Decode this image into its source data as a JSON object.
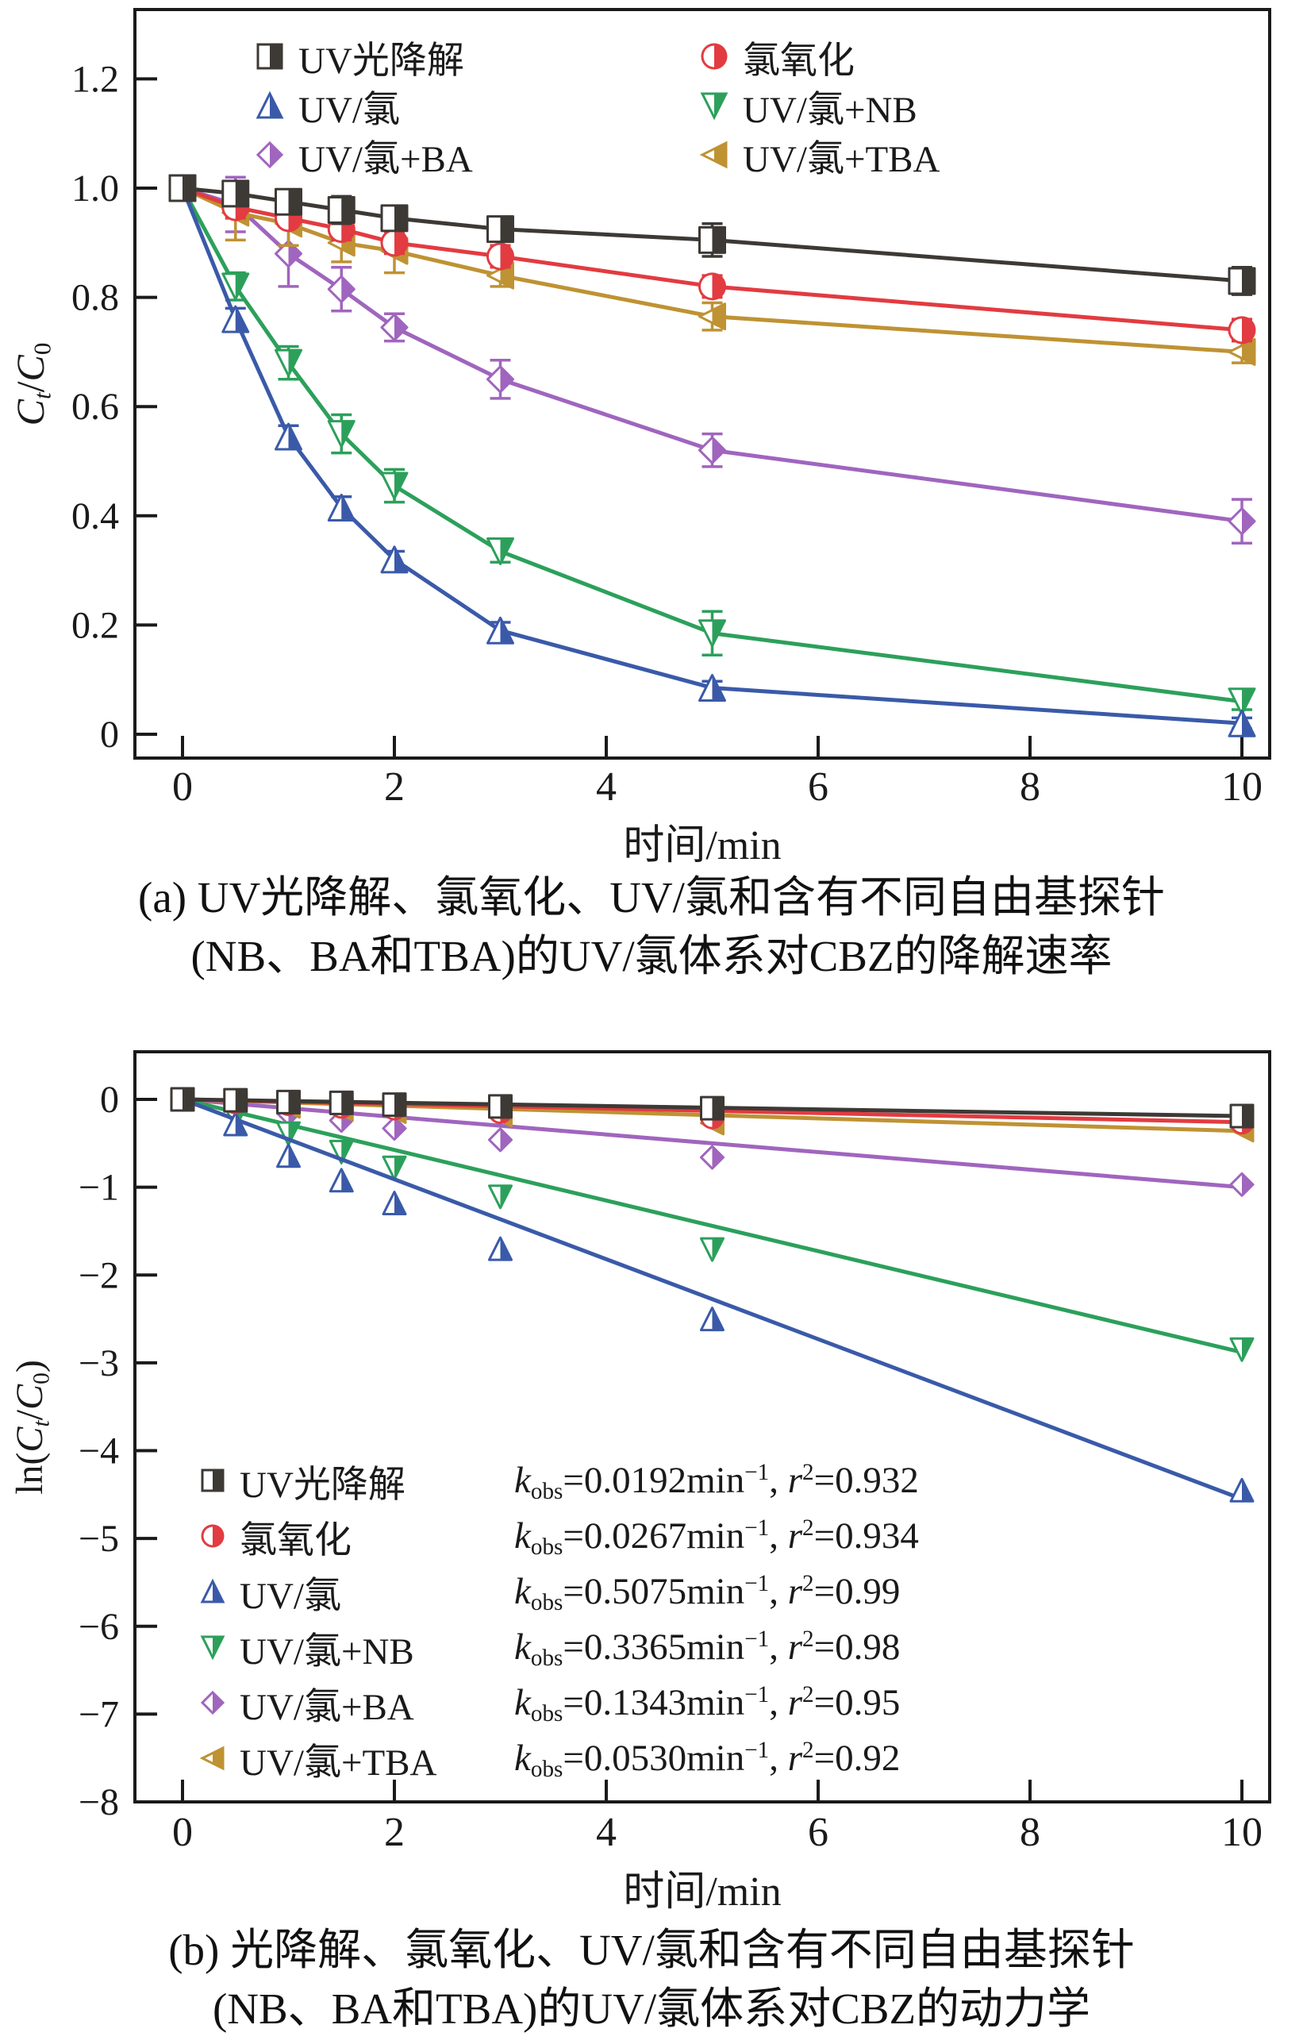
{
  "colors": {
    "axis": "#1a1a1a",
    "background": "#ffffff"
  },
  "chart_data": [
    {
      "panel": "a",
      "type": "line",
      "xlabel": "时间/min",
      "ylabel_parts": [
        [
          "i",
          "C"
        ],
        [
          "subi",
          "t"
        ],
        [
          "t",
          "/"
        ],
        [
          "i",
          "C"
        ],
        [
          "sub",
          "0"
        ]
      ],
      "xlim": [
        -0.45,
        10.26
      ],
      "ylim": [
        -0.044,
        1.33
      ],
      "xticks": {
        "values": [
          0,
          2,
          4,
          6,
          8,
          10
        ],
        "labels": [
          "0",
          "2",
          "4",
          "6",
          "8",
          "10"
        ]
      },
      "yticks": {
        "values": [
          0,
          0.2,
          0.4,
          0.6,
          0.8,
          1.0,
          1.2
        ],
        "labels": [
          "0",
          "0.2",
          "0.4",
          "0.6",
          "0.8",
          "1.0",
          "1.2"
        ]
      },
      "x": [
        0,
        0.5,
        1,
        1.5,
        2,
        3,
        5,
        10
      ],
      "series": [
        {
          "key": "uv_photolysis",
          "name": "UV光降解",
          "color": "#3d3935",
          "marker": "square",
          "values": [
            1.0,
            0.99,
            0.975,
            0.96,
            0.945,
            0.925,
            0.905,
            0.83
          ],
          "errors": [
            0,
            0.02,
            0.02,
            0.025,
            0.02,
            0.02,
            0.03,
            0.025
          ]
        },
        {
          "key": "chlorination",
          "name": "氯氧化",
          "color": "#e23b41",
          "marker": "circle",
          "values": [
            1.0,
            0.965,
            0.945,
            0.925,
            0.9,
            0.875,
            0.82,
            0.74
          ],
          "errors": [
            0,
            0.02,
            0.015,
            0.02,
            0.02,
            0.02,
            0.02,
            0.02
          ]
        },
        {
          "key": "uv_chlorine",
          "name": "UV/氯",
          "color": "#3a5aa9",
          "marker": "triangle-up",
          "values": [
            1.0,
            0.76,
            0.545,
            0.415,
            0.32,
            0.19,
            0.085,
            0.02
          ],
          "errors": [
            0,
            0.02,
            0.02,
            0.02,
            0.015,
            0.015,
            0.012,
            0.01
          ]
        },
        {
          "key": "uv_chlorine_nb",
          "name": "UV/氯+NB",
          "color": "#2ca05b",
          "marker": "triangle-down",
          "values": [
            1.0,
            0.82,
            0.68,
            0.55,
            0.455,
            0.335,
            0.185,
            0.06
          ],
          "errors": [
            0,
            0.025,
            0.03,
            0.035,
            0.03,
            0.02,
            0.04,
            0.015
          ]
        },
        {
          "key": "uv_chlorine_ba",
          "name": "UV/氯+BA",
          "color": "#a065be",
          "marker": "diamond",
          "values": [
            1.0,
            0.97,
            0.88,
            0.815,
            0.745,
            0.65,
            0.52,
            0.39
          ],
          "errors": [
            0,
            0.05,
            0.06,
            0.04,
            0.025,
            0.035,
            0.03,
            0.04
          ]
        },
        {
          "key": "uv_chlorine_tba",
          "name": "UV/氯+TBA",
          "color": "#bf9233",
          "marker": "triangle-left",
          "values": [
            1.0,
            0.955,
            0.935,
            0.9,
            0.885,
            0.84,
            0.765,
            0.7
          ],
          "errors": [
            0,
            0.05,
            0.04,
            0.035,
            0.04,
            0.02,
            0.025,
            0.02
          ]
        }
      ],
      "legend_columns": [
        [
          "uv_photolysis",
          "uv_chlorine",
          "uv_chlorine_ba"
        ],
        [
          "chlorination",
          "uv_chlorine_nb",
          "uv_chlorine_tba"
        ]
      ],
      "caption": {
        "line1": "(a) UV光降解、氯氧化、UV/氯和含有不同自由基探针",
        "line2": "(NB、BA和TBA)的UV/氯体系对CBZ的降解速率"
      }
    },
    {
      "panel": "b",
      "type": "scatter",
      "xlabel": "时间/min",
      "ylabel_parts": [
        [
          "t",
          "ln("
        ],
        [
          "i",
          "C"
        ],
        [
          "subi",
          "t"
        ],
        [
          "t",
          "/"
        ],
        [
          "i",
          "C"
        ],
        [
          "sub",
          "0"
        ],
        [
          "t",
          ")"
        ]
      ],
      "xlim": [
        -0.45,
        10.26
      ],
      "ylim": [
        -8,
        0.55
      ],
      "xticks": {
        "values": [
          0,
          2,
          4,
          6,
          8,
          10
        ],
        "labels": [
          "0",
          "2",
          "4",
          "6",
          "8",
          "10"
        ]
      },
      "yticks": {
        "values": [
          0,
          -1,
          -2,
          -3,
          -4,
          -5,
          -6,
          -7,
          -8
        ],
        "labels": [
          "0",
          "−1",
          "−2",
          "−3",
          "−4",
          "−5",
          "−6",
          "−7",
          "−8"
        ]
      },
      "x": [
        0,
        0.5,
        1,
        1.5,
        2,
        3,
        5,
        10
      ],
      "series": [
        {
          "key": "uv_photolysis",
          "name": "UV光降解",
          "color": "#3d3935",
          "marker": "square",
          "scatter": [
            0,
            -0.01,
            -0.03,
            -0.04,
            -0.06,
            -0.08,
            -0.1,
            -0.19
          ],
          "fit_end": -0.19,
          "kobs": "0.0192",
          "r2": "0.932"
        },
        {
          "key": "chlorination",
          "name": "氯氧化",
          "color": "#e23b41",
          "marker": "circle",
          "scatter": [
            0,
            -0.03,
            -0.05,
            -0.08,
            -0.1,
            -0.14,
            -0.2,
            -0.26
          ],
          "fit_end": -0.26,
          "kobs": "0.0267",
          "r2": "0.934"
        },
        {
          "key": "uv_chlorine",
          "name": "UV/氯",
          "color": "#3a5aa9",
          "marker": "triangle-up",
          "scatter": [
            0,
            -0.28,
            -0.64,
            -0.92,
            -1.18,
            -1.7,
            -2.5,
            -4.45
          ],
          "fit_end": -4.55,
          "kobs": "0.5075",
          "r2": "0.99"
        },
        {
          "key": "uv_chlorine_nb",
          "name": "UV/氯+NB",
          "color": "#2ca05b",
          "marker": "triangle-down",
          "scatter": [
            0,
            -0.2,
            -0.39,
            -0.6,
            -0.78,
            -1.11,
            -1.71,
            -2.85
          ],
          "fit_end": -2.88,
          "kobs": "0.3365",
          "r2": "0.98"
        },
        {
          "key": "uv_chlorine_ba",
          "name": "UV/氯+BA",
          "color": "#a065be",
          "marker": "diamond",
          "scatter": [
            0,
            -0.06,
            -0.16,
            -0.24,
            -0.33,
            -0.46,
            -0.66,
            -0.97
          ],
          "fit_end": -1.0,
          "kobs": "0.1343",
          "r2": "0.95"
        },
        {
          "key": "uv_chlorine_tba",
          "name": "UV/氯+TBA",
          "color": "#bf9233",
          "marker": "triangle-left",
          "scatter": [
            0,
            -0.05,
            -0.08,
            -0.11,
            -0.14,
            -0.18,
            -0.27,
            -0.35
          ],
          "fit_end": -0.36,
          "kobs": "0.0530",
          "r2": "0.92"
        }
      ],
      "legend_format": {
        "k_symbol": "k",
        "k_subscript": "obs",
        "equals": "=",
        "unit": "min",
        "unit_superscript": "−1",
        "separator": ", ",
        "r_symbol": "r",
        "r_superscript": "2"
      },
      "caption": {
        "line1": "(b) 光降解、氯氧化、UV/氯和含有不同自由基探针",
        "line2": "(NB、BA和TBA)的UV/氯体系对CBZ的动力学"
      }
    }
  ]
}
